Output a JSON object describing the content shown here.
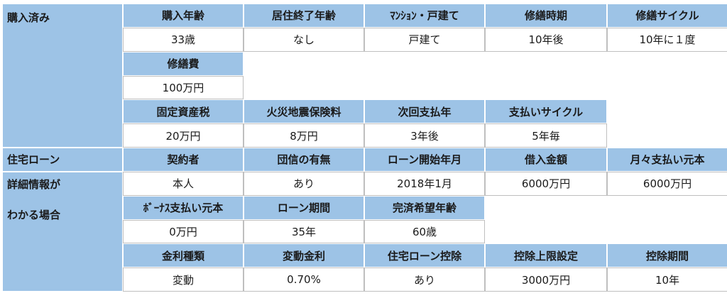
{
  "section1": {
    "label": "購入済み",
    "headers": [
      "購入年齢",
      "居住終了年齢",
      "ﾏﾝｼｮﾝ・戸建て",
      "修繕時期",
      "修繕サイクル"
    ],
    "values": [
      "33歳",
      "なし",
      "戸建て",
      "10年後",
      "10年に１度"
    ],
    "repair_cost_header": "修繕費",
    "repair_cost_value": "100万円",
    "tax_headers": [
      "固定資産税",
      "火災地震保険料",
      "次回支払年",
      "支払いサイクル"
    ],
    "tax_values": [
      "20万円",
      "8万円",
      "3年後",
      "5年毎"
    ]
  },
  "section2": {
    "label": "住宅ローン",
    "label_lines": [
      "詳細情報が",
      "わかる場合"
    ],
    "headers": [
      "契約者",
      "団信の有無",
      "ローン開始年月",
      "借入金額",
      "月々支払い元本"
    ],
    "values": [
      "本人",
      "あり",
      "2018年1月",
      "6000万円",
      "6000万円"
    ],
    "bonus_headers": [
      "ﾎﾞｰﾅｽ支払い元本",
      "ローン期間",
      "完済希望年齢"
    ],
    "bonus_values": [
      "0万円",
      "35年",
      "60歳"
    ],
    "rate_headers": [
      "金利種類",
      "変動金利",
      "住宅ローン控除",
      "控除上限設定",
      "控除期間"
    ],
    "rate_values": [
      "変動",
      "0.70%",
      "あり",
      "3000万円",
      "10年"
    ]
  },
  "colors": {
    "header_bg": "#9dc3e6",
    "value_bg": "#ffffff",
    "border": "#bfbfbf"
  }
}
